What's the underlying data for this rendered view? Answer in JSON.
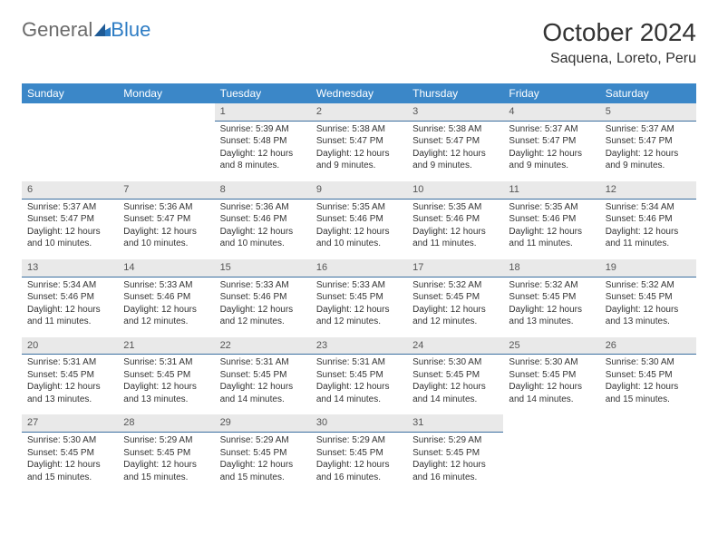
{
  "logo": {
    "part1": "General",
    "part2": "Blue"
  },
  "title": "October 2024",
  "location": "Saquena, Loreto, Peru",
  "colors": {
    "header_bg": "#3b87c8",
    "header_text": "#ffffff",
    "daynum_bg": "#e9e9e9",
    "daynum_border": "#3b6fa0",
    "body_text": "#333333",
    "logo_gray": "#6b6b6b",
    "logo_blue": "#2d7cc4"
  },
  "weekdays": [
    "Sunday",
    "Monday",
    "Tuesday",
    "Wednesday",
    "Thursday",
    "Friday",
    "Saturday"
  ],
  "weeks": [
    [
      null,
      null,
      {
        "n": "1",
        "sr": "5:39 AM",
        "ss": "5:48 PM",
        "dl": "12 hours and 8 minutes."
      },
      {
        "n": "2",
        "sr": "5:38 AM",
        "ss": "5:47 PM",
        "dl": "12 hours and 9 minutes."
      },
      {
        "n": "3",
        "sr": "5:38 AM",
        "ss": "5:47 PM",
        "dl": "12 hours and 9 minutes."
      },
      {
        "n": "4",
        "sr": "5:37 AM",
        "ss": "5:47 PM",
        "dl": "12 hours and 9 minutes."
      },
      {
        "n": "5",
        "sr": "5:37 AM",
        "ss": "5:47 PM",
        "dl": "12 hours and 9 minutes."
      }
    ],
    [
      {
        "n": "6",
        "sr": "5:37 AM",
        "ss": "5:47 PM",
        "dl": "12 hours and 10 minutes."
      },
      {
        "n": "7",
        "sr": "5:36 AM",
        "ss": "5:47 PM",
        "dl": "12 hours and 10 minutes."
      },
      {
        "n": "8",
        "sr": "5:36 AM",
        "ss": "5:46 PM",
        "dl": "12 hours and 10 minutes."
      },
      {
        "n": "9",
        "sr": "5:35 AM",
        "ss": "5:46 PM",
        "dl": "12 hours and 10 minutes."
      },
      {
        "n": "10",
        "sr": "5:35 AM",
        "ss": "5:46 PM",
        "dl": "12 hours and 11 minutes."
      },
      {
        "n": "11",
        "sr": "5:35 AM",
        "ss": "5:46 PM",
        "dl": "12 hours and 11 minutes."
      },
      {
        "n": "12",
        "sr": "5:34 AM",
        "ss": "5:46 PM",
        "dl": "12 hours and 11 minutes."
      }
    ],
    [
      {
        "n": "13",
        "sr": "5:34 AM",
        "ss": "5:46 PM",
        "dl": "12 hours and 11 minutes."
      },
      {
        "n": "14",
        "sr": "5:33 AM",
        "ss": "5:46 PM",
        "dl": "12 hours and 12 minutes."
      },
      {
        "n": "15",
        "sr": "5:33 AM",
        "ss": "5:46 PM",
        "dl": "12 hours and 12 minutes."
      },
      {
        "n": "16",
        "sr": "5:33 AM",
        "ss": "5:45 PM",
        "dl": "12 hours and 12 minutes."
      },
      {
        "n": "17",
        "sr": "5:32 AM",
        "ss": "5:45 PM",
        "dl": "12 hours and 12 minutes."
      },
      {
        "n": "18",
        "sr": "5:32 AM",
        "ss": "5:45 PM",
        "dl": "12 hours and 13 minutes."
      },
      {
        "n": "19",
        "sr": "5:32 AM",
        "ss": "5:45 PM",
        "dl": "12 hours and 13 minutes."
      }
    ],
    [
      {
        "n": "20",
        "sr": "5:31 AM",
        "ss": "5:45 PM",
        "dl": "12 hours and 13 minutes."
      },
      {
        "n": "21",
        "sr": "5:31 AM",
        "ss": "5:45 PM",
        "dl": "12 hours and 13 minutes."
      },
      {
        "n": "22",
        "sr": "5:31 AM",
        "ss": "5:45 PM",
        "dl": "12 hours and 14 minutes."
      },
      {
        "n": "23",
        "sr": "5:31 AM",
        "ss": "5:45 PM",
        "dl": "12 hours and 14 minutes."
      },
      {
        "n": "24",
        "sr": "5:30 AM",
        "ss": "5:45 PM",
        "dl": "12 hours and 14 minutes."
      },
      {
        "n": "25",
        "sr": "5:30 AM",
        "ss": "5:45 PM",
        "dl": "12 hours and 14 minutes."
      },
      {
        "n": "26",
        "sr": "5:30 AM",
        "ss": "5:45 PM",
        "dl": "12 hours and 15 minutes."
      }
    ],
    [
      {
        "n": "27",
        "sr": "5:30 AM",
        "ss": "5:45 PM",
        "dl": "12 hours and 15 minutes."
      },
      {
        "n": "28",
        "sr": "5:29 AM",
        "ss": "5:45 PM",
        "dl": "12 hours and 15 minutes."
      },
      {
        "n": "29",
        "sr": "5:29 AM",
        "ss": "5:45 PM",
        "dl": "12 hours and 15 minutes."
      },
      {
        "n": "30",
        "sr": "5:29 AM",
        "ss": "5:45 PM",
        "dl": "12 hours and 16 minutes."
      },
      {
        "n": "31",
        "sr": "5:29 AM",
        "ss": "5:45 PM",
        "dl": "12 hours and 16 minutes."
      },
      null,
      null
    ]
  ],
  "labels": {
    "sunrise": "Sunrise:",
    "sunset": "Sunset:",
    "daylight": "Daylight:"
  }
}
